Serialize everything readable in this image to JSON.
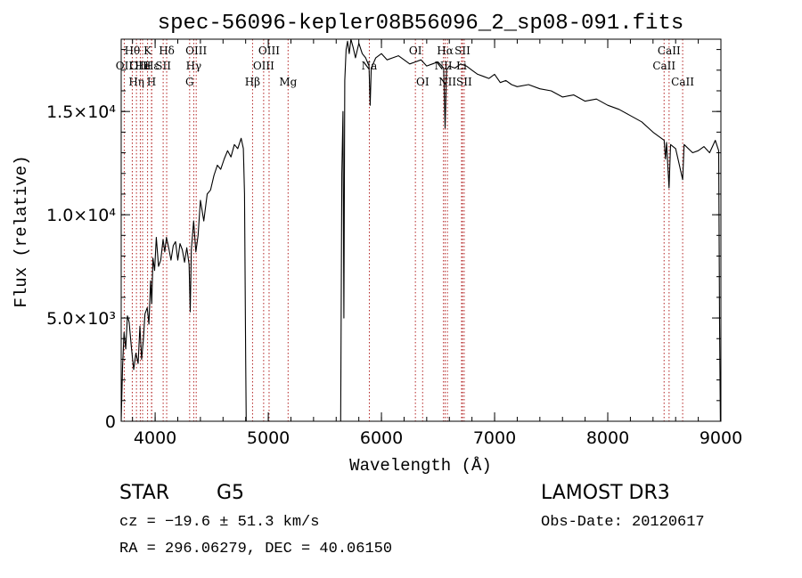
{
  "chart_data": {
    "type": "line",
    "title": "spec-56096-kepler08B56096_2_sp08-091.fits",
    "xlabel": "Wavelength (Å)",
    "ylabel": "Flux (relative)",
    "xlim": [
      3700,
      9000
    ],
    "ylim": [
      0,
      18500
    ],
    "x_ticks": [
      {
        "value": 4000,
        "label": "4000"
      },
      {
        "value": 5000,
        "label": "5000"
      },
      {
        "value": 6000,
        "label": "6000"
      },
      {
        "value": 7000,
        "label": "7000"
      },
      {
        "value": 8000,
        "label": "8000"
      },
      {
        "value": 9000,
        "label": "9000"
      }
    ],
    "y_ticks": [
      {
        "value": 0,
        "label": "0"
      },
      {
        "value": 5000,
        "label": "5.0×10³"
      },
      {
        "value": 10000,
        "label": "1.0×10⁴"
      },
      {
        "value": 15000,
        "label": "1.5×10⁴"
      }
    ],
    "x_minor_step": 200,
    "y_minor_step": 1000,
    "line_color": "#000000",
    "marker_color": "#b22222",
    "series": [
      {
        "name": "flux",
        "points": [
          [
            3700,
            0
          ],
          [
            3712,
            2600
          ],
          [
            3725,
            4300
          ],
          [
            3740,
            3500
          ],
          [
            3755,
            5100
          ],
          [
            3770,
            4800
          ],
          [
            3790,
            3600
          ],
          [
            3810,
            2500
          ],
          [
            3830,
            3300
          ],
          [
            3850,
            2800
          ],
          [
            3865,
            4600
          ],
          [
            3880,
            3000
          ],
          [
            3895,
            3900
          ],
          [
            3910,
            5200
          ],
          [
            3930,
            5500
          ],
          [
            3945,
            4700
          ],
          [
            3960,
            6800
          ],
          [
            3970,
            5700
          ],
          [
            3980,
            7900
          ],
          [
            3995,
            7300
          ],
          [
            4010,
            8900
          ],
          [
            4030,
            7500
          ],
          [
            4050,
            7800
          ],
          [
            4070,
            8800
          ],
          [
            4085,
            8200
          ],
          [
            4100,
            8900
          ],
          [
            4120,
            8400
          ],
          [
            4140,
            7800
          ],
          [
            4160,
            8500
          ],
          [
            4180,
            8700
          ],
          [
            4200,
            7800
          ],
          [
            4220,
            8600
          ],
          [
            4240,
            8300
          ],
          [
            4260,
            7700
          ],
          [
            4280,
            8400
          ],
          [
            4300,
            7600
          ],
          [
            4310,
            5300
          ],
          [
            4320,
            8300
          ],
          [
            4340,
            9700
          ],
          [
            4360,
            8200
          ],
          [
            4380,
            9000
          ],
          [
            4400,
            10700
          ],
          [
            4430,
            9700
          ],
          [
            4460,
            11000
          ],
          [
            4490,
            11200
          ],
          [
            4520,
            11900
          ],
          [
            4550,
            12400
          ],
          [
            4580,
            12200
          ],
          [
            4610,
            12700
          ],
          [
            4640,
            13100
          ],
          [
            4670,
            12800
          ],
          [
            4700,
            13400
          ],
          [
            4730,
            13200
          ],
          [
            4760,
            13700
          ],
          [
            4780,
            13200
          ],
          [
            4790,
            11000
          ],
          [
            4800,
            3000
          ],
          [
            4805,
            0
          ],
          [
            5640,
            0
          ],
          [
            5650,
            12000
          ],
          [
            5660,
            15000
          ],
          [
            5668,
            5000
          ],
          [
            5676,
            16500
          ],
          [
            5688,
            18000
          ],
          [
            5700,
            18400
          ],
          [
            5715,
            17800
          ],
          [
            5730,
            18500
          ],
          [
            5750,
            18100
          ],
          [
            5770,
            17600
          ],
          [
            5800,
            18300
          ],
          [
            5830,
            17800
          ],
          [
            5860,
            17600
          ],
          [
            5890,
            17200
          ],
          [
            5900,
            15300
          ],
          [
            5910,
            17100
          ],
          [
            5950,
            17600
          ],
          [
            6000,
            17800
          ],
          [
            6050,
            17500
          ],
          [
            6100,
            17600
          ],
          [
            6150,
            17700
          ],
          [
            6200,
            17500
          ],
          [
            6250,
            17300
          ],
          [
            6300,
            17400
          ],
          [
            6350,
            17500
          ],
          [
            6400,
            17200
          ],
          [
            6450,
            17300
          ],
          [
            6500,
            17400
          ],
          [
            6550,
            17100
          ],
          [
            6563,
            14200
          ],
          [
            6575,
            17000
          ],
          [
            6600,
            17200
          ],
          [
            6650,
            17100
          ],
          [
            6700,
            17300
          ],
          [
            6750,
            17200
          ],
          [
            6800,
            17000
          ],
          [
            6850,
            16800
          ],
          [
            6900,
            16700
          ],
          [
            6950,
            16600
          ],
          [
            7000,
            16800
          ],
          [
            7050,
            16400
          ],
          [
            7100,
            16500
          ],
          [
            7150,
            16300
          ],
          [
            7200,
            16200
          ],
          [
            7300,
            16300
          ],
          [
            7400,
            16100
          ],
          [
            7500,
            16000
          ],
          [
            7600,
            15700
          ],
          [
            7700,
            15800
          ],
          [
            7800,
            15500
          ],
          [
            7900,
            15600
          ],
          [
            8000,
            15300
          ],
          [
            8100,
            15100
          ],
          [
            8200,
            14800
          ],
          [
            8300,
            14500
          ],
          [
            8400,
            14000
          ],
          [
            8498,
            13600
          ],
          [
            8510,
            12700
          ],
          [
            8520,
            13500
          ],
          [
            8542,
            11300
          ],
          [
            8555,
            13400
          ],
          [
            8600,
            13200
          ],
          [
            8662,
            11700
          ],
          [
            8675,
            13400
          ],
          [
            8750,
            13000
          ],
          [
            8800,
            13100
          ],
          [
            8850,
            13300
          ],
          [
            8900,
            13000
          ],
          [
            8950,
            13600
          ],
          [
            8980,
            13100
          ],
          [
            8988,
            4700
          ],
          [
            8995,
            0
          ]
        ]
      }
    ],
    "line_markers": [
      {
        "wavelength": 3727,
        "label": "OII",
        "row": 2
      },
      {
        "wavelength": 3798,
        "label": "Hθ",
        "row": 1
      },
      {
        "wavelength": 3835,
        "label": "Hη",
        "row": 3
      },
      {
        "wavelength": 3869,
        "label": "OIII",
        "row": 2
      },
      {
        "wavelength": 3889,
        "label": "He",
        "row": 2
      },
      {
        "wavelength": 3933,
        "label": "K",
        "row": 1
      },
      {
        "wavelength": 3968,
        "label": "H",
        "row": 3
      },
      {
        "wavelength": 3970,
        "label": "Hε",
        "row": 2
      },
      {
        "wavelength": 4071,
        "label": "SII",
        "row": 2
      },
      {
        "wavelength": 4102,
        "label": "Hδ",
        "row": 1
      },
      {
        "wavelength": 4305,
        "label": "G",
        "row": 3
      },
      {
        "wavelength": 4341,
        "label": "Hγ",
        "row": 2
      },
      {
        "wavelength": 4363,
        "label": "OIII",
        "row": 1
      },
      {
        "wavelength": 4861,
        "label": "Hβ",
        "row": 3
      },
      {
        "wavelength": 4959,
        "label": "OIII",
        "row": 2
      },
      {
        "wavelength": 5007,
        "label": "OIII",
        "row": 1
      },
      {
        "wavelength": 5175,
        "label": "Mg",
        "row": 3
      },
      {
        "wavelength": 5893,
        "label": "Na",
        "row": 2
      },
      {
        "wavelength": 6300,
        "label": "OI",
        "row": 1
      },
      {
        "wavelength": 6364,
        "label": "OI",
        "row": 3
      },
      {
        "wavelength": 6548,
        "label": "NII",
        "row": 2
      },
      {
        "wavelength": 6563,
        "label": "Hα",
        "row": 1
      },
      {
        "wavelength": 6583,
        "label": "NII",
        "row": 3
      },
      {
        "wavelength": 6708,
        "label": "Li",
        "row": 2
      },
      {
        "wavelength": 6716,
        "label": "SII",
        "row": 1
      },
      {
        "wavelength": 6731,
        "label": "SII",
        "row": 3
      },
      {
        "wavelength": 8498,
        "label": "CaII",
        "row": 2
      },
      {
        "wavelength": 8542,
        "label": "CaII",
        "row": 1
      },
      {
        "wavelength": 8662,
        "label": "CaII",
        "row": 3
      }
    ]
  },
  "info": {
    "class": "STAR",
    "subclass": "G5",
    "redshift": "cz = −19.6 ± 51.3 km/s",
    "coords": "RA = 296.06279, DEC =  40.06150",
    "survey": "LAMOST DR3",
    "obs_date": "Obs-Date: 20120617"
  }
}
